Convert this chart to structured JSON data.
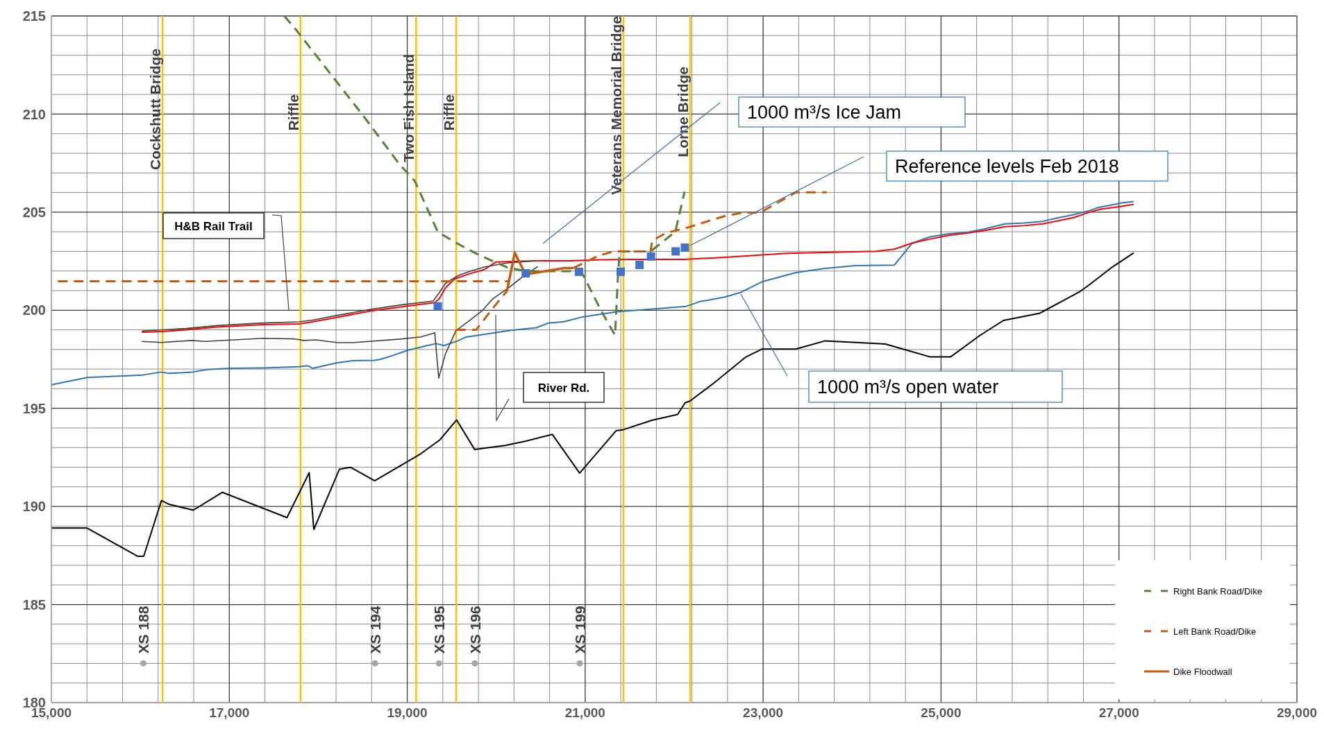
{
  "chart_data": {
    "type": "line",
    "xlim": [
      15000,
      29000
    ],
    "ylim": [
      180,
      215
    ],
    "xticks": [
      {
        "value": 15000,
        "label": "15,000"
      },
      {
        "value": 17000,
        "label": "17,000"
      },
      {
        "value": 19000,
        "label": "19,000"
      },
      {
        "value": 21000,
        "label": "21,000"
      },
      {
        "value": 23000,
        "label": "23,000"
      },
      {
        "value": 25000,
        "label": "25,000"
      },
      {
        "value": 27000,
        "label": "27,000"
      },
      {
        "value": 29000,
        "label": "29,000"
      }
    ],
    "yticks": [
      180,
      185,
      190,
      195,
      200,
      205,
      210,
      215
    ],
    "grid": true,
    "legend": "bottom right",
    "series": [
      {
        "color": "#2e75b6",
        "line_style": "solid",
        "x": [
          15000,
          15403,
          16028,
          16236,
          16323,
          16583,
          16757,
          17000,
          17382,
          17781,
          17885,
          17937,
          18215,
          18389,
          18632,
          18701,
          18840,
          19014,
          19222,
          19326,
          19413,
          19569,
          19656,
          19791,
          20138,
          20451,
          20590,
          20763,
          20971,
          21353,
          21735,
          22134,
          22290,
          22569,
          22743,
          22986,
          23368,
          23680,
          24027,
          24475,
          24675,
          24878,
          25088,
          25298,
          25473,
          25719,
          25930,
          26140,
          26280,
          26491,
          26667,
          26772,
          26947,
          27035,
          27165
        ],
        "values": [
          196.2,
          196.57,
          196.7,
          196.85,
          196.78,
          196.85,
          196.98,
          197.04,
          197.06,
          197.12,
          197.17,
          197.04,
          197.32,
          197.43,
          197.45,
          197.5,
          197.7,
          197.97,
          198.2,
          198.3,
          198.2,
          198.44,
          198.63,
          198.72,
          198.96,
          199.11,
          199.35,
          199.42,
          199.66,
          199.92,
          200.05,
          200.2,
          200.44,
          200.67,
          200.9,
          201.45,
          201.92,
          202.12,
          202.27,
          202.3,
          203.42,
          203.74,
          203.9,
          203.97,
          204.13,
          204.4,
          204.45,
          204.53,
          204.68,
          204.87,
          205.08,
          205.24,
          205.39,
          205.47,
          205.54
        ]
      },
      {
        "color": "#ff0000",
        "line_style": "solid",
        "x": [
          16017,
          16236,
          16514,
          16861,
          17382,
          17781,
          17903,
          18180,
          18597,
          19014,
          19309,
          19361,
          19430,
          19534,
          19708,
          19864,
          19999,
          20485,
          20833,
          21180,
          21527,
          22117,
          22569,
          23264,
          24271,
          24475,
          24675,
          24878,
          25088,
          25298,
          25473,
          25719,
          25930,
          26140,
          26491,
          26667,
          26807,
          26947,
          27165
        ],
        "values": [
          198.88,
          198.91,
          199.0,
          199.14,
          199.27,
          199.3,
          199.38,
          199.61,
          199.97,
          200.22,
          200.39,
          200.59,
          201.14,
          201.6,
          201.87,
          202.07,
          202.46,
          202.52,
          202.52,
          202.57,
          202.59,
          202.59,
          202.7,
          202.9,
          203.01,
          203.11,
          203.42,
          203.63,
          203.82,
          203.93,
          204.05,
          204.26,
          204.31,
          204.4,
          204.72,
          205.0,
          205.16,
          205.24,
          205.39
        ]
      },
      {
        "color": "#404040",
        "line_style": "solid",
        "x": [
          16017,
          16514,
          16861,
          17382,
          17781,
          17937,
          18215,
          18597,
          18944,
          19291,
          19361,
          19430,
          19569,
          19708,
          19864,
          20138,
          20451
        ],
        "values": [
          198.94,
          199.07,
          199.22,
          199.35,
          199.41,
          199.5,
          199.74,
          200.05,
          200.28,
          200.47,
          200.9,
          201.37,
          201.76,
          201.99,
          202.2,
          202.42,
          202.53
        ]
      },
      {
        "color": "#404040",
        "line_style": "solid",
        "x": [
          16017,
          16236,
          16583,
          16722,
          17382,
          17729,
          17833,
          17972,
          18215,
          18389,
          18944,
          19153,
          19309,
          19354,
          19430,
          19548,
          19708,
          19847,
          19965,
          20138,
          20312,
          20468
        ],
        "values": [
          198.41,
          198.36,
          198.46,
          198.41,
          198.57,
          198.54,
          198.46,
          198.49,
          198.35,
          198.35,
          198.54,
          198.64,
          198.85,
          196.54,
          197.79,
          198.96,
          199.5,
          200.0,
          200.6,
          201.14,
          201.76,
          202.23
        ]
      },
      {
        "color": "#000000",
        "line_style": "solid",
        "x": [
          15000,
          15401,
          15968,
          16038,
          16237,
          16322,
          16595,
          16921,
          17648,
          17898,
          17950,
          18238,
          18365,
          18634,
          19154,
          19366,
          19555,
          19758,
          20098,
          20334,
          20631,
          20938,
          21348,
          21419,
          21748,
          22039,
          22124,
          22174,
          22449,
          22800,
          22986,
          23368,
          23698,
          24375,
          24878,
          25106,
          25438,
          25701,
          26105,
          26561,
          26667,
          26912,
          27165
        ],
        "values": [
          188.9,
          188.9,
          187.46,
          187.46,
          190.3,
          190.11,
          189.81,
          190.72,
          189.43,
          191.72,
          188.83,
          191.9,
          191.99,
          191.31,
          192.69,
          193.39,
          194.41,
          192.9,
          193.11,
          193.33,
          193.67,
          191.7,
          193.86,
          193.9,
          194.39,
          194.69,
          195.29,
          195.36,
          196.3,
          197.6,
          198.02,
          198.02,
          198.44,
          198.28,
          197.62,
          197.62,
          198.72,
          199.48,
          199.84,
          200.95,
          201.3,
          202.16,
          202.92
        ]
      },
      {
        "name": "Right Bank Road/Dike",
        "color": "#548235",
        "line_style": "dashed",
        "x": [
          17618,
          17764,
          18180,
          18528,
          18910,
          19083,
          19343,
          19534,
          19791,
          20138,
          20346,
          20833,
          20971,
          21180,
          21336,
          21371,
          21388,
          21735,
          22013,
          22117
        ],
        "values": [
          215,
          214.22,
          211.8,
          209.78,
          207.45,
          206.6,
          204.0,
          203.47,
          202.85,
          202.15,
          201.99,
          201.99,
          201.84,
          199.97,
          198.72,
          201.99,
          203.0,
          203.0,
          204.0,
          206.04
        ]
      },
      {
        "name": "Left Bank Road/Dike",
        "color": "#c55a11",
        "line_style": "dashed",
        "x": [
          20867,
          20971,
          21145,
          21319,
          21735,
          21753,
          21909,
          22117,
          22569,
          22777,
          22968,
          23368,
          23715
        ],
        "values": [
          202.15,
          202.38,
          202.77,
          203.0,
          203.0,
          203.55,
          203.94,
          204.17,
          204.8,
          204.98,
          204.98,
          206.01,
          206.01
        ]
      },
      {
        "color": "#c55a11",
        "line_style": "dashed",
        "x": [
          19548,
          19774,
          19965,
          20121
        ],
        "values": [
          199.0,
          199.0,
          200.12,
          200.98
        ]
      },
      {
        "color": "#c55a11",
        "line_style": "dashed",
        "x": [
          15073,
          20138
        ],
        "values": [
          201.48,
          201.48
        ]
      },
      {
        "name": "Dike Floodwall",
        "color": "#c55a11",
        "line_style": "solid",
        "x": [
          20121,
          20208,
          20312,
          20346,
          20763,
          20867
        ],
        "values": [
          200.98,
          202.93,
          201.99,
          201.84,
          202.15,
          202.15
        ]
      },
      {
        "type": "scatter",
        "color": "#4472c4",
        "marker": "square",
        "x": [
          19343,
          20332,
          20930,
          21399,
          21611,
          21740,
          22017,
          22121
        ],
        "values": [
          200.2,
          201.88,
          201.96,
          201.96,
          202.31,
          202.74,
          203.0,
          203.19
        ]
      },
      {
        "type": "scatter",
        "color": "#a6a6a6",
        "marker": "circle",
        "x": [
          16034,
          18639,
          19357,
          19758,
          20938
        ],
        "values": [
          182,
          182,
          182,
          182,
          182
        ],
        "value_labels": [
          "XS 188",
          "XS 194",
          "XS 195",
          "XS 196",
          "XS 199"
        ]
      }
    ],
    "ref_lines": [
      {
        "axis": "x",
        "value": 16250,
        "label": "Cockshutt Bridge",
        "color": "#ffc000"
      },
      {
        "axis": "x",
        "value": 17800,
        "label": "Riffle",
        "color": "#ffc000"
      },
      {
        "axis": "x",
        "value": 19100,
        "label": "Two Fish Island",
        "color": "#ffc000"
      },
      {
        "axis": "x",
        "value": 19550,
        "label": "Riffle",
        "color": "#ffc000"
      },
      {
        "axis": "x",
        "value": 21430,
        "label": "Veterans Memorial Bridge",
        "color": "#ffc000"
      },
      {
        "axis": "x",
        "value": 22180,
        "label": "Lorne Bridge",
        "color": "#ffc000"
      }
    ],
    "annotations": [
      "1000 m³/s Ice Jam",
      "Reference levels Feb 2018",
      "1000 m³/s open water",
      "H&B Rail Trail",
      "River Rd."
    ]
  }
}
